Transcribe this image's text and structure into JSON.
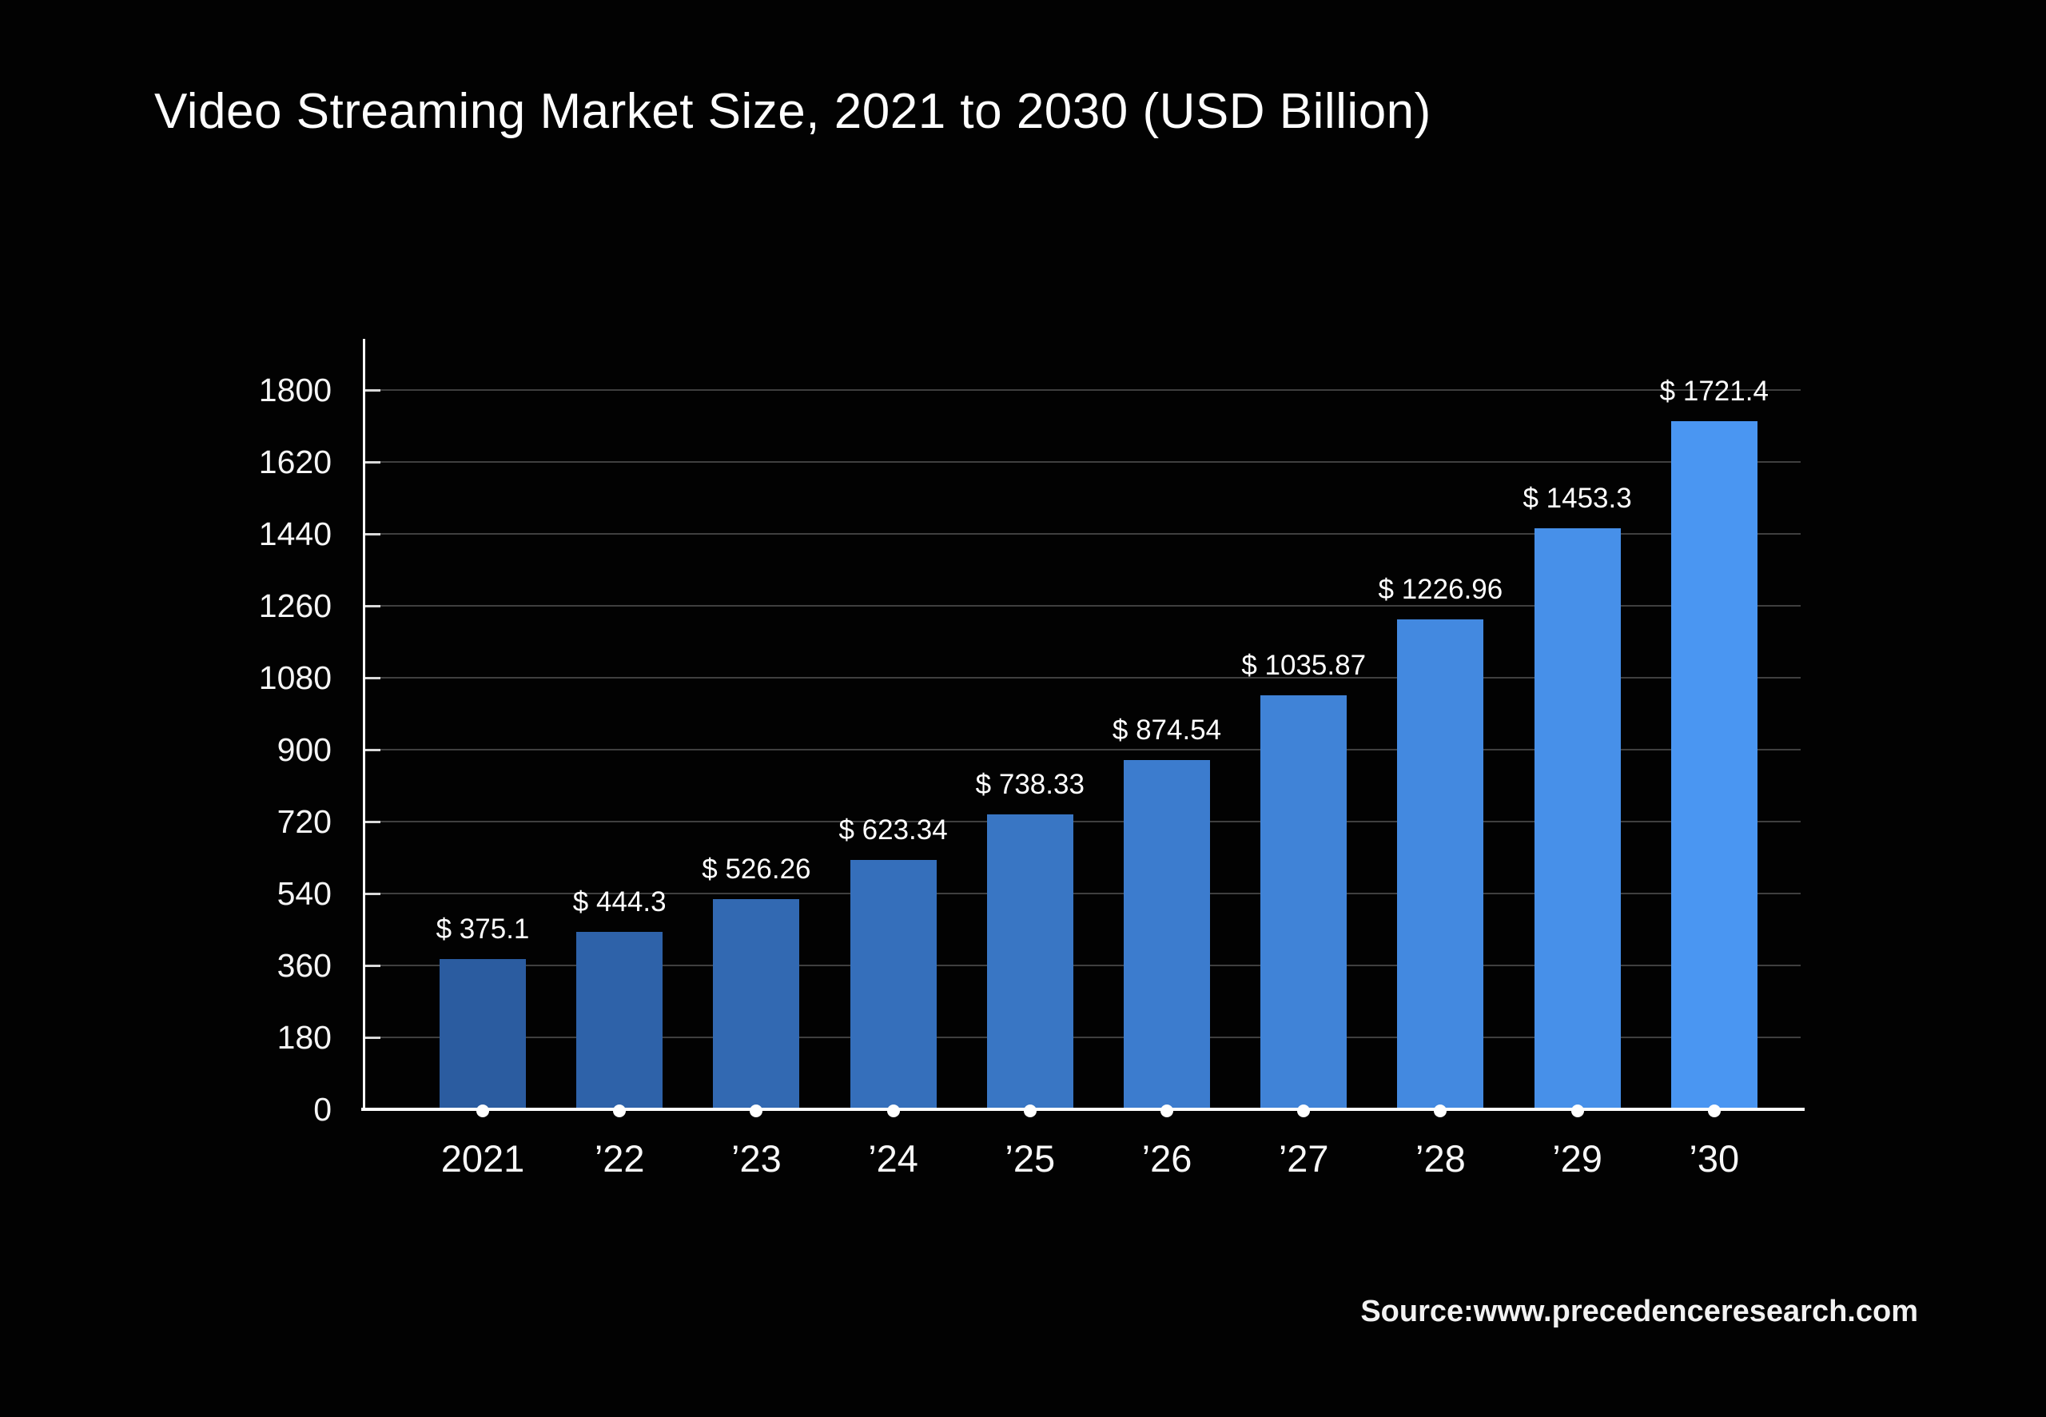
{
  "title": "Video Streaming Market Size, 2021 to 2030 (USD Billion)",
  "source": "Source:www.precedenceresearch.com",
  "colors": {
    "background": "#020202",
    "axis": "#ffffff",
    "gridline": "#3f3f3f",
    "text": "#ffffff",
    "bar_start": "#2b5ca0",
    "bar_end": "#4a96f2"
  },
  "chart_data": {
    "type": "bar",
    "title": "Video Streaming Market Size, 2021 to 2030 (USD Billion)",
    "categories": [
      "2021",
      "’22",
      "’23",
      "’24",
      "’25",
      "’26",
      "’27",
      "’28",
      "’29",
      "’30"
    ],
    "values": [
      375.1,
      444.3,
      526.26,
      623.34,
      738.33,
      874.54,
      1035.87,
      1226.96,
      1453.3,
      1721.4
    ],
    "value_labels": [
      "$ 375.1",
      "$ 444.3",
      "$ 526.26",
      "$ 623.34",
      "$ 738.33",
      "$ 874.54",
      "$ 1035.87",
      "$ 1226.96",
      "$ 1453.3",
      "$ 1721.4"
    ],
    "bar_colors": [
      "#2b5ca0",
      "#2e62a9",
      "#3269b2",
      "#356fbb",
      "#3976c4",
      "#3c7cce",
      "#4083d7",
      "#4389e0",
      "#4790e9",
      "#4a96f2"
    ],
    "xlabel": "",
    "ylabel": "",
    "ylim": [
      0,
      1800
    ],
    "yticks": [
      0,
      180,
      360,
      540,
      720,
      900,
      1080,
      1260,
      1440,
      1620,
      1800
    ],
    "grid": true,
    "legend": "none"
  }
}
